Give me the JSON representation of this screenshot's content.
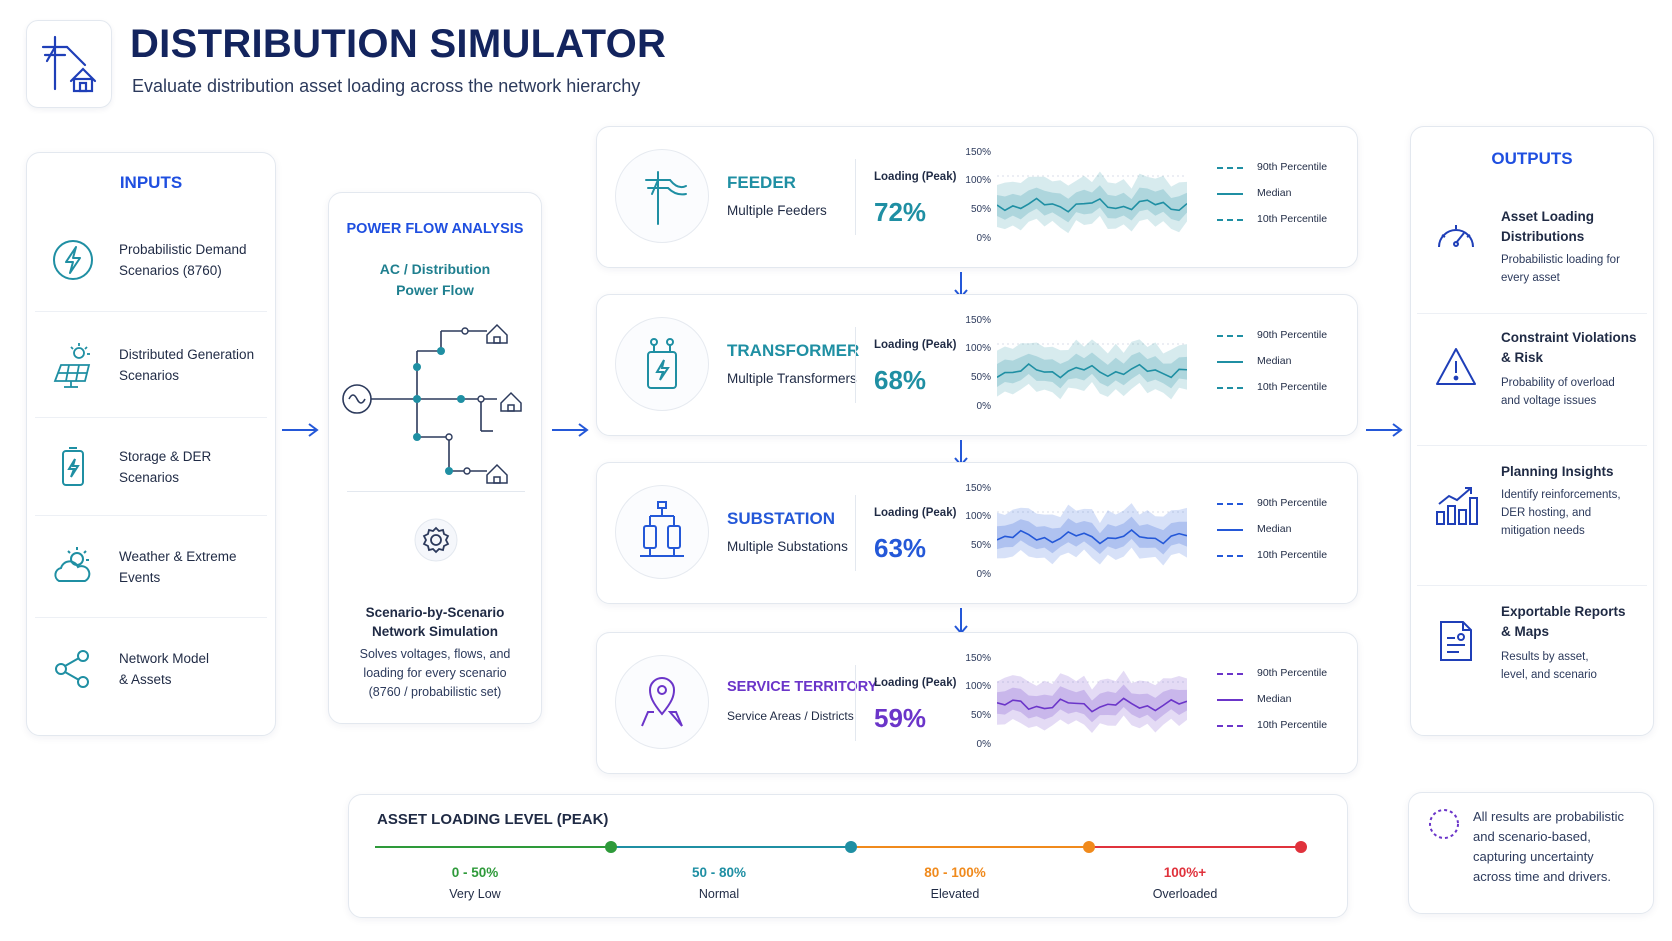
{
  "header": {
    "title": "DISTRIBUTION SIMULATOR",
    "subtitle": "Evaluate distribution asset loading across the network hierarchy",
    "logo_icon": "utility-pole-house-icon"
  },
  "inputs": {
    "title": "INPUTS",
    "items": [
      {
        "label": "Probabilistic Demand\nScenarios (8760)",
        "icon": "lightning-circle-icon"
      },
      {
        "label": "Distributed Generation\nScenarios",
        "icon": "solar-panel-icon"
      },
      {
        "label": "Storage & DER\nScenarios",
        "icon": "battery-icon"
      },
      {
        "label": "Weather & Extreme\nEvents",
        "icon": "cloud-sun-icon"
      },
      {
        "label": "Network Model\n& Assets",
        "icon": "network-share-icon"
      }
    ]
  },
  "power_flow": {
    "title": "POWER FLOW ANALYSIS",
    "subtitle": "AC / Distribution\nPower Flow",
    "sim_title": "Scenario-by-Scenario\nNetwork Simulation",
    "sim_desc": "Solves voltages, flows, and\nloading for every scenario\n(8760 / probabilistic set)"
  },
  "hierarchy": {
    "loading_label": "Loading (Peak)",
    "ticks": [
      "150%",
      "100%",
      "50%",
      "0%"
    ],
    "legend": [
      "90th Percentile",
      "Median",
      "10th Percentile"
    ],
    "levels": [
      {
        "name": "FEEDER",
        "desc": "Multiple Feeders",
        "value": "72%",
        "color": "#1f8fa3",
        "icon": "utility-pole-icon"
      },
      {
        "name": "TRANSFORMER",
        "desc": "Multiple Transformers",
        "value": "68%",
        "color": "#1f8fa3",
        "icon": "transformer-icon"
      },
      {
        "name": "SUBSTATION",
        "desc": "Multiple Substations",
        "value": "63%",
        "color": "#2458d8",
        "icon": "substation-icon"
      },
      {
        "name": "SERVICE TERRITORY",
        "desc": "Service Areas / Districts",
        "value": "59%",
        "color": "#6b35c9",
        "icon": "map-pin-icon"
      }
    ]
  },
  "outputs": {
    "title": "OUTPUTS",
    "items": [
      {
        "title": "Asset Loading\nDistributions",
        "desc": "Probabilistic loading for\nevery asset",
        "icon": "gauge-icon"
      },
      {
        "title": "Constraint Violations\n& Risk",
        "desc": "Probability of overload\nand voltage issues",
        "icon": "warning-icon"
      },
      {
        "title": "Planning Insights",
        "desc": "Identify reinforcements,\nDER hosting, and\nmitigation needs",
        "icon": "bar-chart-growth-icon"
      },
      {
        "title": "Exportable Reports\n& Maps",
        "desc": "Results by asset,\nlevel, and scenario",
        "icon": "report-document-icon"
      }
    ]
  },
  "loading_level": {
    "title": "ASSET LOADING LEVEL (PEAK)",
    "bands": [
      {
        "range": "0 - 50%",
        "name": "Very Low",
        "color": "#2e9a3a"
      },
      {
        "range": "50 - 80%",
        "name": "Normal",
        "color": "#1f8fa3"
      },
      {
        "range": "80 - 100%",
        "name": "Elevated",
        "color": "#f08a1c"
      },
      {
        "range": "100%+",
        "name": "Overloaded",
        "color": "#e0323c"
      }
    ]
  },
  "note": {
    "text": "All results are probabilistic\nand scenario-based,\ncapturing uncertainty\nacross time and drivers.",
    "icon": "dashed-circle-icon"
  }
}
